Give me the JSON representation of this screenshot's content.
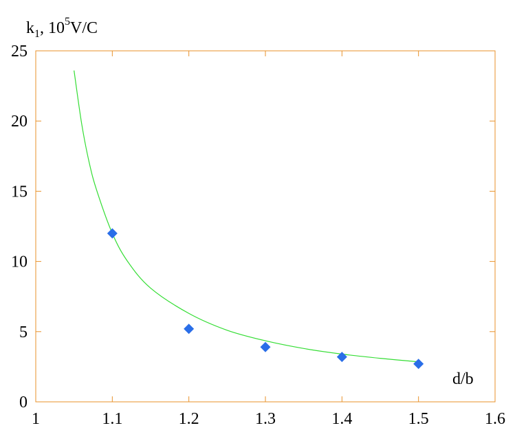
{
  "chart_data": {
    "type": "scatter",
    "ylabel": {
      "base": "k",
      "sub": "1",
      "sep": ", 10",
      "sup": "5",
      "unit": "V/C"
    },
    "xlabel": "d/b",
    "xlim": [
      1,
      1.6
    ],
    "ylim": [
      0,
      25
    ],
    "x_ticks": [
      "1",
      "1.1",
      "1.2",
      "1.3",
      "1.4",
      "1.5",
      "1.6"
    ],
    "y_ticks": [
      "0",
      "5",
      "10",
      "15",
      "20",
      "25"
    ],
    "grid": false,
    "frame_color": "#e8922a",
    "series": [
      {
        "kind": "points",
        "marker": "diamond",
        "color": "#2a6ee8",
        "x": [
          1.1,
          1.2,
          1.3,
          1.4,
          1.5
        ],
        "y": [
          12.0,
          5.2,
          3.9,
          3.2,
          2.7
        ]
      },
      {
        "kind": "curve",
        "color": "#33dd33",
        "x": [
          1.05,
          1.06,
          1.07,
          1.08,
          1.1,
          1.12,
          1.15,
          1.2,
          1.25,
          1.3,
          1.35,
          1.4,
          1.45,
          1.5
        ],
        "y": [
          23.6,
          19.8,
          17.0,
          15.0,
          12.0,
          10.0,
          8.1,
          6.3,
          5.1,
          4.35,
          3.8,
          3.4,
          3.1,
          2.85
        ]
      }
    ]
  }
}
